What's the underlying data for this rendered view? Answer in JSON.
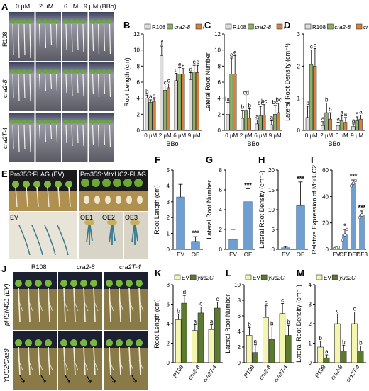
{
  "panels": {
    "A": {
      "letter": "A",
      "conc_header": [
        "0 µM",
        "2 µM",
        "6 µM",
        "9 µM (BBo)"
      ],
      "rows": [
        "R108",
        "cra2-8",
        "cra2T-4"
      ]
    },
    "E": {
      "letter": "E",
      "left_title": "Pro35S:FLAG (EV)",
      "right_title": "Pro35S:MtYUC2-FLAG (OE)",
      "sub_labels": [
        "EV",
        "OE1",
        "OE2",
        "OE3"
      ]
    },
    "J": {
      "letter": "J",
      "col_labels": [
        "R108",
        "cra2-8",
        "cra2T-4"
      ],
      "row_labels": [
        "pHSN401 (EV)",
        "YUC2/Cas9"
      ]
    }
  },
  "legend_bcd": [
    "R108",
    "cra2-8",
    "cra2T-4"
  ],
  "legend_klm": [
    "EV",
    "yuc2C"
  ],
  "colors": {
    "r108": "#dcdcdc",
    "cra28": "#8fb06a",
    "cra2t4": "#d8813a",
    "blue": "#6e9fd0",
    "ev": "#f4f6b0",
    "yuc2c": "#5b7a2f"
  },
  "chart_data": [
    {
      "id": "B",
      "type": "bar",
      "ylabel": "Root Length (cm)",
      "xlabel": "BBo",
      "categories": [
        "0 µM",
        "2 µM",
        "6 µM",
        "9 µM"
      ],
      "ylim": [
        0,
        12
      ],
      "yticks": [
        0,
        2,
        4,
        6,
        8,
        10,
        12
      ],
      "series": [
        {
          "name": "R108",
          "values": [
            4.0,
            9.3,
            6.2,
            6.3
          ],
          "err": [
            0.4,
            1.2,
            0.9,
            0.9
          ],
          "letters": [
            "b",
            "f",
            "d",
            "d"
          ]
        },
        {
          "name": "cra2-8",
          "values": [
            3.5,
            5.0,
            7.0,
            7.3
          ],
          "err": [
            0.3,
            0.5,
            0.8,
            0.8
          ],
          "letters": [
            "a",
            "c",
            "e",
            "e"
          ]
        },
        {
          "name": "cra2T-4",
          "values": [
            3.6,
            5.3,
            7.0,
            7.2
          ],
          "err": [
            0.3,
            0.5,
            0.7,
            0.9
          ],
          "letters": [
            "a",
            "c",
            "e",
            "e"
          ]
        }
      ]
    },
    {
      "id": "C",
      "type": "bar",
      "ylabel": "Lateral Root Number",
      "xlabel": "BBo",
      "categories": [
        "0 µM",
        "2 µM",
        "6 µM",
        "9 µM"
      ],
      "ylim": [
        0,
        12
      ],
      "yticks": [
        0,
        2,
        4,
        6,
        8,
        10,
        12
      ],
      "series": [
        {
          "name": "R108",
          "values": [
            2.0,
            1.5,
            0.8,
            0.7
          ],
          "err": [
            1.5,
            1.0,
            0.5,
            0.5
          ],
          "letters": [
            "bc",
            "b",
            "a",
            "a"
          ]
        },
        {
          "name": "cra2-8",
          "values": [
            7.0,
            2.5,
            1.8,
            2.0
          ],
          "err": [
            2.0,
            1.8,
            1.2,
            1.1
          ],
          "letters": [
            "e",
            "cd",
            "bc",
            "bc"
          ]
        },
        {
          "name": "cra2T-4",
          "values": [
            7.0,
            1.5,
            1.9,
            2.2
          ],
          "err": [
            2.3,
            1.2,
            1.3,
            1.2
          ],
          "letters": [
            "e",
            "b",
            "bc",
            "bc"
          ]
        }
      ]
    },
    {
      "id": "D",
      "type": "bar",
      "ylabel": "Lateral Root Density (cm⁻¹)",
      "xlabel": "BBo",
      "categories": [
        "0 µM",
        "2 µM",
        "6 µM",
        "9 µM"
      ],
      "ylim": [
        0,
        3
      ],
      "yticks": [
        0,
        1,
        2,
        3
      ],
      "series": [
        {
          "name": "R108",
          "values": [
            0.4,
            0.15,
            0.15,
            0.12
          ],
          "err": [
            0.35,
            0.12,
            0.1,
            0.08
          ],
          "letters": [
            "b",
            "a",
            "a",
            "a"
          ]
        },
        {
          "name": "cra2-8",
          "values": [
            2.05,
            0.55,
            0.3,
            0.3
          ],
          "err": [
            0.45,
            0.3,
            0.15,
            0.12
          ],
          "letters": [
            "c",
            "b",
            "a",
            "a"
          ]
        },
        {
          "name": "cra2T-4",
          "values": [
            2.0,
            0.35,
            0.25,
            0.35
          ],
          "err": [
            0.55,
            0.2,
            0.15,
            0.12
          ],
          "letters": [
            "c",
            "b",
            "a",
            "a"
          ]
        }
      ]
    },
    {
      "id": "F",
      "type": "bar",
      "ylabel": "Root Length (cm)",
      "categories": [
        "EV",
        "OE"
      ],
      "ylim": [
        0,
        5
      ],
      "yticks": [
        0,
        1,
        2,
        3,
        4,
        5
      ],
      "values": [
        3.3,
        0.5
      ],
      "err": [
        0.8,
        0.3
      ],
      "stars": [
        "",
        "***"
      ]
    },
    {
      "id": "G",
      "type": "bar",
      "ylabel": "Lateral Root Number",
      "categories": [
        "EV",
        "OE"
      ],
      "ylim": [
        0,
        8
      ],
      "yticks": [
        0,
        2,
        4,
        6,
        8
      ],
      "values": [
        1.0,
        4.8
      ],
      "err": [
        1.0,
        1.3
      ],
      "stars": [
        "",
        "***"
      ]
    },
    {
      "id": "H",
      "type": "bar",
      "ylabel": "Lateral Root Density (cm⁻¹)",
      "categories": [
        "EV",
        "OE"
      ],
      "ylim": [
        0,
        20
      ],
      "yticks": [
        0,
        5,
        10,
        15,
        20
      ],
      "values": [
        0.4,
        11.0
      ],
      "err": [
        0.3,
        6.0
      ],
      "stars": [
        "",
        "***"
      ]
    },
    {
      "id": "I",
      "type": "bar",
      "ylabel": "Relative Expression of MtYUC2",
      "categories": [
        "EV",
        "OE1",
        "OE2",
        "OE3"
      ],
      "ylim": [
        0,
        60
      ],
      "yticks": [
        0,
        20,
        40,
        60
      ],
      "values": [
        1.0,
        11.0,
        50.0,
        26.0
      ],
      "err": [
        0.5,
        4.0,
        2.5,
        3.0
      ],
      "stars": [
        "",
        "*",
        "***",
        "***"
      ],
      "points": [
        [
          0.5,
          1.0,
          1.5
        ],
        [
          7.0,
          11.0,
          15.0
        ],
        [
          48.0,
          50.0,
          52.0
        ],
        [
          24.0,
          26.0,
          29.0
        ]
      ]
    },
    {
      "id": "K",
      "type": "bar",
      "ylabel": "Root Length (cm)",
      "categories": [
        "R108",
        "cra2-8",
        "cra2T-4"
      ],
      "ylim": [
        0,
        8
      ],
      "yticks": [
        0,
        2,
        4,
        6,
        8
      ],
      "series": [
        {
          "name": "EV",
          "values": [
            4.4,
            3.3,
            3.4
          ],
          "err": [
            0.6,
            0.6,
            0.5
          ],
          "letters": [
            "b",
            "a",
            "a"
          ]
        },
        {
          "name": "yuc2C",
          "values": [
            6.1,
            5.1,
            5.6
          ],
          "err": [
            0.8,
            0.6,
            0.6
          ],
          "letters": [
            "d",
            "c",
            "c"
          ]
        }
      ]
    },
    {
      "id": "L",
      "type": "bar",
      "ylabel": "Lateral Root Number",
      "categories": [
        "R108",
        "cra2-8",
        "cra2T-4"
      ],
      "ylim": [
        0,
        10
      ],
      "yticks": [
        0,
        2,
        4,
        6,
        8,
        10
      ],
      "series": [
        {
          "name": "EV",
          "values": [
            3.5,
            5.8,
            6.3
          ],
          "err": [
            1.0,
            1.5,
            1.3
          ],
          "letters": [
            "b",
            "c",
            "c"
          ]
        },
        {
          "name": "yuc2C",
          "values": [
            1.3,
            3.0,
            3.5
          ],
          "err": [
            1.0,
            1.6,
            1.3
          ],
          "letters": [
            "a",
            "b",
            "b"
          ]
        }
      ]
    },
    {
      "id": "M",
      "type": "bar",
      "ylabel": "Lateral Root Density (cm⁻¹)",
      "categories": [
        "R108",
        "cra2-8",
        "cra2T-4"
      ],
      "ylim": [
        0,
        4
      ],
      "yticks": [
        0,
        1,
        2,
        3,
        4
      ],
      "series": [
        {
          "name": "EV",
          "values": [
            0.8,
            2.0,
            2.0
          ],
          "err": [
            0.3,
            0.5,
            0.6
          ],
          "letters": [
            "b",
            "c",
            "c"
          ]
        },
        {
          "name": "yuc2C",
          "values": [
            0.25,
            0.6,
            0.6
          ],
          "err": [
            0.15,
            0.3,
            0.25
          ],
          "letters": [
            "a",
            "b",
            "b"
          ]
        }
      ]
    }
  ]
}
